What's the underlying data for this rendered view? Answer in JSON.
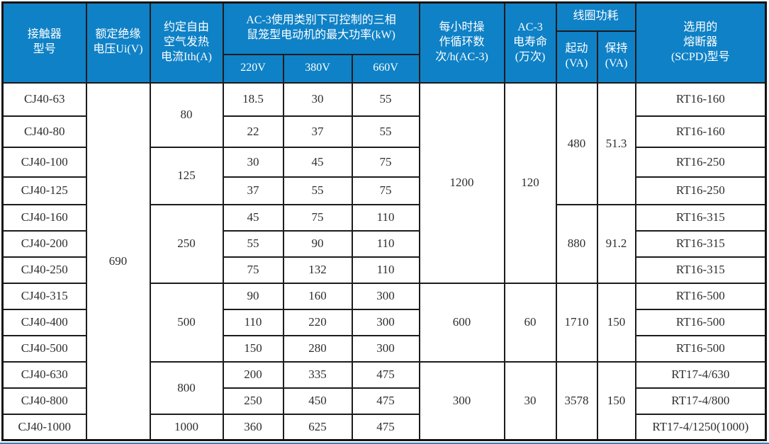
{
  "colors": {
    "header_bg": "#0f81c6",
    "header_text": "#ffffff",
    "border": "#1c1c1c",
    "body_text": "#2e2e2e",
    "bottom_line": "#3c7fb0"
  },
  "table": {
    "header": {
      "model": "接触器\n型号",
      "insulation_voltage": "额定绝缘\n电压Ui(V)",
      "thermal_current": "约定自由\n空气发热\n电流Ith(A)",
      "power_group": "AC-3使用类别下可控制的三相\n鼠笼型电动机的最大功率(kW)",
      "v220": "220V",
      "v380": "380V",
      "v660": "660V",
      "cycles": "每小时操\n作循环数\n次/h(AC-3)",
      "electrical_life": "AC-3\n电寿命\n(万次)",
      "coil_group": "线圈功耗",
      "coil_start": "起动\n(VA)",
      "coil_hold": "保持\n(VA)",
      "fuse": "选用的\n熔断器\n(SCPD)型号"
    },
    "body": {
      "rows": [
        {
          "cells": [
            {
              "t": "CJ40-63",
              "n": "model-cell"
            },
            {
              "t": "690",
              "n": "ui-cell",
              "rs": 13
            },
            {
              "t": "80",
              "n": "ith-cell",
              "rs": 2
            },
            {
              "t": "18.5",
              "n": "kw-220-cell"
            },
            {
              "t": "30",
              "n": "kw-380-cell"
            },
            {
              "t": "55",
              "n": "kw-660-cell"
            },
            {
              "t": "1200",
              "n": "cycles-cell",
              "rs": 7
            },
            {
              "t": "120",
              "n": "life-cell",
              "rs": 7
            },
            {
              "t": "480",
              "n": "coil-start-cell",
              "rs": 4
            },
            {
              "t": "51.3",
              "n": "coil-hold-cell",
              "rs": 4
            },
            {
              "t": "RT16-160",
              "n": "fuse-cell"
            }
          ]
        },
        {
          "cells": [
            {
              "t": "CJ40-80",
              "n": "model-cell"
            },
            {
              "t": "22",
              "n": "kw-220-cell"
            },
            {
              "t": "37",
              "n": "kw-380-cell"
            },
            {
              "t": "55",
              "n": "kw-660-cell"
            },
            {
              "t": "RT16-160",
              "n": "fuse-cell"
            }
          ]
        },
        {
          "cells": [
            {
              "t": "CJ40-100",
              "n": "model-cell"
            },
            {
              "t": "125",
              "n": "ith-cell",
              "rs": 2
            },
            {
              "t": "30",
              "n": "kw-220-cell"
            },
            {
              "t": "45",
              "n": "kw-380-cell"
            },
            {
              "t": "75",
              "n": "kw-660-cell"
            },
            {
              "t": "RT16-250",
              "n": "fuse-cell"
            }
          ]
        },
        {
          "cells": [
            {
              "t": "CJ40-125",
              "n": "model-cell"
            },
            {
              "t": "37",
              "n": "kw-220-cell"
            },
            {
              "t": "55",
              "n": "kw-380-cell"
            },
            {
              "t": "75",
              "n": "kw-660-cell"
            },
            {
              "t": "RT16-250",
              "n": "fuse-cell"
            }
          ]
        },
        {
          "cells": [
            {
              "t": "CJ40-160",
              "n": "model-cell"
            },
            {
              "t": "250",
              "n": "ith-cell",
              "rs": 3
            },
            {
              "t": "45",
              "n": "kw-220-cell"
            },
            {
              "t": "75",
              "n": "kw-380-cell"
            },
            {
              "t": "110",
              "n": "kw-660-cell"
            },
            {
              "t": "880",
              "n": "coil-start-cell",
              "rs": 3
            },
            {
              "t": "91.2",
              "n": "coil-hold-cell",
              "rs": 3
            },
            {
              "t": "RT16-315",
              "n": "fuse-cell"
            }
          ]
        },
        {
          "cells": [
            {
              "t": "CJ40-200",
              "n": "model-cell"
            },
            {
              "t": "55",
              "n": "kw-220-cell"
            },
            {
              "t": "90",
              "n": "kw-380-cell"
            },
            {
              "t": "110",
              "n": "kw-660-cell"
            },
            {
              "t": "RT16-315",
              "n": "fuse-cell"
            }
          ]
        },
        {
          "cells": [
            {
              "t": "CJ40-250",
              "n": "model-cell"
            },
            {
              "t": "75",
              "n": "kw-220-cell"
            },
            {
              "t": "132",
              "n": "kw-380-cell"
            },
            {
              "t": "110",
              "n": "kw-660-cell"
            },
            {
              "t": "RT16-315",
              "n": "fuse-cell"
            }
          ]
        },
        {
          "cells": [
            {
              "t": "CJ40-315",
              "n": "model-cell"
            },
            {
              "t": "500",
              "n": "ith-cell",
              "rs": 3
            },
            {
              "t": "90",
              "n": "kw-220-cell"
            },
            {
              "t": "160",
              "n": "kw-380-cell"
            },
            {
              "t": "300",
              "n": "kw-660-cell"
            },
            {
              "t": "600",
              "n": "cycles-cell",
              "rs": 3
            },
            {
              "t": "60",
              "n": "life-cell",
              "rs": 3
            },
            {
              "t": "1710",
              "n": "coil-start-cell",
              "rs": 3
            },
            {
              "t": "150",
              "n": "coil-hold-cell",
              "rs": 3
            },
            {
              "t": "RT16-500",
              "n": "fuse-cell"
            }
          ]
        },
        {
          "cells": [
            {
              "t": "CJ40-400",
              "n": "model-cell"
            },
            {
              "t": "110",
              "n": "kw-220-cell"
            },
            {
              "t": "220",
              "n": "kw-380-cell"
            },
            {
              "t": "300",
              "n": "kw-660-cell"
            },
            {
              "t": "RT16-500",
              "n": "fuse-cell"
            }
          ]
        },
        {
          "cells": [
            {
              "t": "CJ40-500",
              "n": "model-cell"
            },
            {
              "t": "150",
              "n": "kw-220-cell"
            },
            {
              "t": "280",
              "n": "kw-380-cell"
            },
            {
              "t": "300",
              "n": "kw-660-cell"
            },
            {
              "t": "RT16-500",
              "n": "fuse-cell"
            }
          ]
        },
        {
          "cells": [
            {
              "t": "CJ40-630",
              "n": "model-cell"
            },
            {
              "t": "800",
              "n": "ith-cell",
              "rs": 2
            },
            {
              "t": "200",
              "n": "kw-220-cell"
            },
            {
              "t": "335",
              "n": "kw-380-cell"
            },
            {
              "t": "475",
              "n": "kw-660-cell"
            },
            {
              "t": "300",
              "n": "cycles-cell",
              "rs": 3
            },
            {
              "t": "30",
              "n": "life-cell",
              "rs": 3
            },
            {
              "t": "3578",
              "n": "coil-start-cell",
              "rs": 3
            },
            {
              "t": "150",
              "n": "coil-hold-cell",
              "rs": 3
            },
            {
              "t": "RT17-4/630",
              "n": "fuse-cell"
            }
          ]
        },
        {
          "cells": [
            {
              "t": "CJ40-800",
              "n": "model-cell"
            },
            {
              "t": "250",
              "n": "kw-220-cell"
            },
            {
              "t": "450",
              "n": "kw-380-cell"
            },
            {
              "t": "475",
              "n": "kw-660-cell"
            },
            {
              "t": "RT17-4/800",
              "n": "fuse-cell"
            }
          ]
        },
        {
          "cells": [
            {
              "t": "CJ40-1000",
              "n": "model-cell"
            },
            {
              "t": "1000",
              "n": "ith-cell"
            },
            {
              "t": "360",
              "n": "kw-220-cell"
            },
            {
              "t": "625",
              "n": "kw-380-cell"
            },
            {
              "t": "475",
              "n": "kw-660-cell"
            },
            {
              "t": "RT17-4/1250(1000)",
              "n": "fuse-cell"
            }
          ]
        }
      ]
    }
  }
}
